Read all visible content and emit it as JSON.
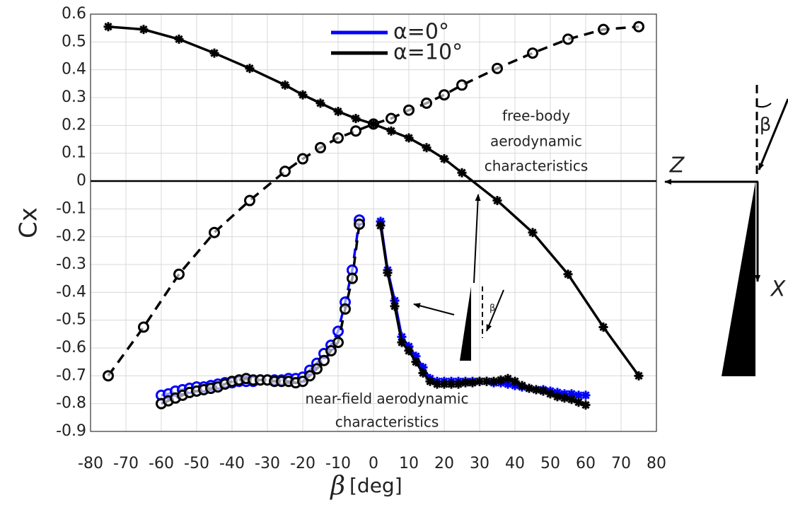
{
  "chart_data": {
    "type": "line",
    "ylabel": "Cx",
    "xlabel_symbol": "β",
    "xlabel_unit": "[deg]",
    "xlim": [
      -80,
      80
    ],
    "ylim": [
      -0.9,
      0.6
    ],
    "xticks": [
      -80,
      -70,
      -60,
      -50,
      -40,
      -30,
      -20,
      -10,
      0,
      10,
      20,
      30,
      40,
      50,
      60,
      70,
      80
    ],
    "yticks": [
      -0.9,
      -0.8,
      -0.7,
      -0.6,
      -0.5,
      -0.4,
      -0.3,
      -0.2,
      -0.1,
      0,
      0.1,
      0.2,
      0.3,
      0.4,
      0.5,
      0.6
    ],
    "grid": true,
    "zero_line": 0,
    "annotations": {
      "free_body": [
        "free-body",
        "aerodynamic",
        "characteristics"
      ],
      "near_field": [
        "near-field aerodynamic",
        "characteristics"
      ]
    },
    "diagram_labels": {
      "z_axis": "Z",
      "x_axis": "X",
      "angle": "β",
      "inset_angle": "β"
    },
    "series": [
      {
        "name": "α=0°",
        "color": "#0000ff",
        "marker": "circle",
        "dashed": true,
        "x": [
          -60,
          -58,
          -56,
          -54,
          -52,
          -50,
          -48,
          -46,
          -44,
          -42,
          -40,
          -38,
          -36,
          -34,
          -32,
          -30,
          -28,
          -26,
          -24,
          -22,
          -20,
          -18,
          -16,
          -14,
          -12,
          -10,
          -8,
          -6,
          -4
        ],
        "values": [
          -0.77,
          -0.765,
          -0.755,
          -0.75,
          -0.745,
          -0.74,
          -0.74,
          -0.735,
          -0.73,
          -0.725,
          -0.725,
          -0.72,
          -0.72,
          -0.72,
          -0.715,
          -0.715,
          -0.715,
          -0.715,
          -0.71,
          -0.71,
          -0.705,
          -0.68,
          -0.655,
          -0.62,
          -0.59,
          -0.54,
          -0.435,
          -0.32,
          -0.14
        ]
      },
      {
        "color": "#0000ff",
        "marker": "asterisk",
        "dashed": false,
        "x": [
          2,
          4,
          6,
          8,
          10,
          12,
          14,
          16,
          18,
          20,
          22,
          24,
          26,
          28,
          30,
          32,
          34,
          36,
          38,
          40,
          42,
          44,
          46,
          48,
          50,
          52,
          54,
          56,
          58,
          60
        ],
        "values": [
          -0.145,
          -0.32,
          -0.43,
          -0.56,
          -0.595,
          -0.63,
          -0.67,
          -0.71,
          -0.72,
          -0.72,
          -0.72,
          -0.72,
          -0.72,
          -0.72,
          -0.72,
          -0.72,
          -0.725,
          -0.725,
          -0.73,
          -0.735,
          -0.74,
          -0.745,
          -0.75,
          -0.75,
          -0.755,
          -0.76,
          -0.765,
          -0.765,
          -0.77,
          -0.77
        ]
      },
      {
        "name": "α=10°",
        "color": "#000000",
        "marker": "circle",
        "dashed": true,
        "x": [
          -60,
          -58,
          -56,
          -54,
          -52,
          -50,
          -48,
          -46,
          -44,
          -42,
          -40,
          -38,
          -36,
          -34,
          -32,
          -30,
          -28,
          -26,
          -24,
          -22,
          -20,
          -18,
          -16,
          -14,
          -12,
          -10,
          -8,
          -6,
          -4
        ],
        "values": [
          -0.8,
          -0.79,
          -0.78,
          -0.77,
          -0.76,
          -0.755,
          -0.75,
          -0.745,
          -0.74,
          -0.73,
          -0.72,
          -0.715,
          -0.71,
          -0.715,
          -0.715,
          -0.715,
          -0.72,
          -0.72,
          -0.72,
          -0.725,
          -0.72,
          -0.7,
          -0.675,
          -0.645,
          -0.61,
          -0.58,
          -0.46,
          -0.35,
          -0.155
        ]
      },
      {
        "color": "#000000",
        "marker": "asterisk",
        "dashed": false,
        "x": [
          2,
          4,
          6,
          8,
          10,
          12,
          14,
          16,
          18,
          20,
          22,
          24,
          26,
          28,
          30,
          32,
          34,
          36,
          38,
          40,
          42,
          44,
          46,
          48,
          50,
          52,
          54,
          56,
          58,
          60
        ],
        "values": [
          -0.16,
          -0.33,
          -0.45,
          -0.58,
          -0.61,
          -0.65,
          -0.69,
          -0.72,
          -0.73,
          -0.73,
          -0.73,
          -0.73,
          -0.725,
          -0.725,
          -0.72,
          -0.72,
          -0.72,
          -0.715,
          -0.71,
          -0.72,
          -0.735,
          -0.745,
          -0.75,
          -0.755,
          -0.765,
          -0.775,
          -0.78,
          -0.785,
          -0.795,
          -0.805
        ]
      },
      {
        "color": "#000000",
        "marker": "circle",
        "dashed": true,
        "x": [
          -75,
          -65,
          -55,
          -45,
          -35,
          -25,
          -20,
          -15,
          -10,
          -5,
          0,
          5,
          10,
          15,
          20,
          25,
          35,
          45,
          55,
          65,
          75
        ],
        "values": [
          -0.7,
          -0.525,
          -0.335,
          -0.185,
          -0.07,
          0.035,
          0.08,
          0.12,
          0.155,
          0.18,
          0.205,
          0.225,
          0.255,
          0.28,
          0.31,
          0.345,
          0.405,
          0.46,
          0.51,
          0.545,
          0.555
        ]
      },
      {
        "color": "#000000",
        "marker": "asterisk",
        "dashed": false,
        "x": [
          -75,
          -65,
          -55,
          -45,
          -35,
          -25,
          -20,
          -15,
          -10,
          -5,
          0,
          5,
          10,
          15,
          20,
          25,
          35,
          45,
          55,
          65,
          75
        ],
        "values": [
          0.555,
          0.545,
          0.51,
          0.46,
          0.405,
          0.345,
          0.31,
          0.28,
          0.25,
          0.225,
          0.205,
          0.18,
          0.155,
          0.12,
          0.08,
          0.03,
          -0.07,
          -0.185,
          -0.335,
          -0.525,
          -0.7
        ]
      }
    ]
  }
}
